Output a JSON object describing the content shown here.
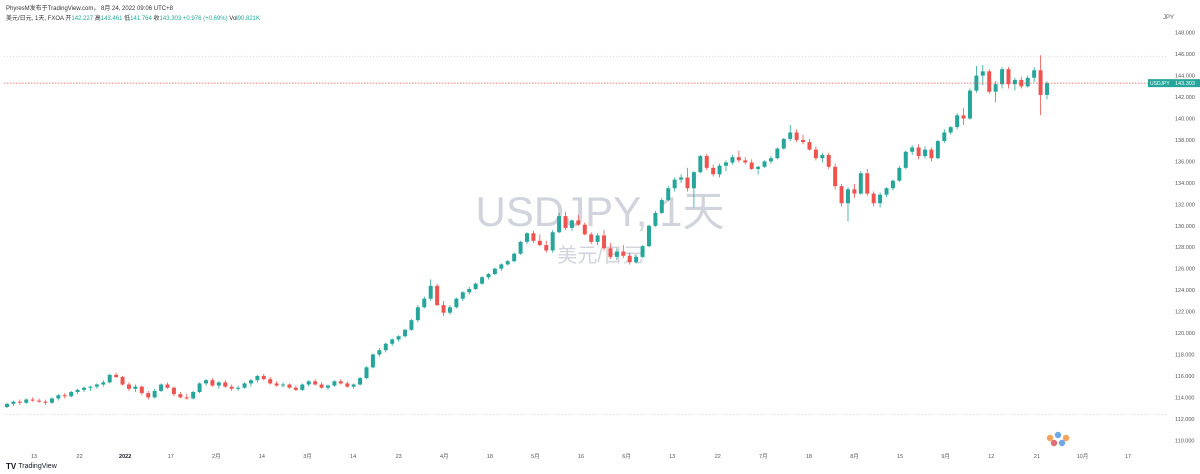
{
  "header": {
    "published": "PhyresM发布于TradingView.com，  8月 24, 2022 09:06 UTC+8",
    "symbol": "美元/日元, 1天, FXOA",
    "open_label": "开",
    "open": "142.227",
    "high_label": "高",
    "high": "143.461",
    "low_label": "低",
    "low": "141.764",
    "close_label": "收",
    "close": "143.303",
    "change": "+0.976 (+0.69%)",
    "vol_label": "Vol",
    "vol": "90.821K"
  },
  "brand": {
    "logo": "TV",
    "name": "TradingView"
  },
  "colors": {
    "up": "#26a69a",
    "down": "#ef5350",
    "price_line": "#ef5350",
    "grid": "#d1d4dc"
  },
  "chart_data": {
    "type": "candlestick",
    "watermark": "USDJPY, 1天",
    "watermark_sub": "美元/日元",
    "y_unit": "JPY",
    "ylim": [
      109,
      149
    ],
    "y_ticks": [
      "110.000",
      "112.000",
      "114.000",
      "116.000",
      "118.000",
      "120.000",
      "122.000",
      "124.000",
      "126.000",
      "128.000",
      "130.000",
      "132.000",
      "134.000",
      "136.000",
      "138.000",
      "140.000",
      "142.000",
      "144.000",
      "146.000",
      "148.000"
    ],
    "x_ticks": [
      "13",
      "22",
      "2022",
      "17",
      "2月",
      "14",
      "3月",
      "14",
      "23",
      "4月",
      "18",
      "5月",
      "16",
      "6月",
      "13",
      "22",
      "7月",
      "18",
      "8月",
      "15",
      "9月",
      "12",
      "21",
      "10月",
      "17"
    ],
    "price_label": {
      "symbol": "USDJPY",
      "value": "143.303"
    },
    "dotted_levels": [
      145.8,
      112.4
    ],
    "candles": [
      [
        113.1,
        113.5,
        113.0,
        113.4
      ],
      [
        113.4,
        113.7,
        113.2,
        113.6
      ],
      [
        113.6,
        113.8,
        113.3,
        113.5
      ],
      [
        113.5,
        113.9,
        113.4,
        113.8
      ],
      [
        113.8,
        114.0,
        113.6,
        113.7
      ],
      [
        113.7,
        113.9,
        113.5,
        113.6
      ],
      [
        113.6,
        113.8,
        113.3,
        113.5
      ],
      [
        113.5,
        114.0,
        113.4,
        113.9
      ],
      [
        113.9,
        114.3,
        113.7,
        114.2
      ],
      [
        114.2,
        114.4,
        113.9,
        114.1
      ],
      [
        114.1,
        114.6,
        114.0,
        114.5
      ],
      [
        114.5,
        114.8,
        114.3,
        114.7
      ],
      [
        114.7,
        115.0,
        114.5,
        114.9
      ],
      [
        114.9,
        115.1,
        114.6,
        115.0
      ],
      [
        115.0,
        115.3,
        114.8,
        115.2
      ],
      [
        115.2,
        115.6,
        115.0,
        115.4
      ],
      [
        115.4,
        116.2,
        115.3,
        116.1
      ],
      [
        116.1,
        116.3,
        115.8,
        115.9
      ],
      [
        115.9,
        116.0,
        115.1,
        115.2
      ],
      [
        115.2,
        115.4,
        114.6,
        114.8
      ],
      [
        114.8,
        115.2,
        114.5,
        115.0
      ],
      [
        115.0,
        115.1,
        114.2,
        114.4
      ],
      [
        114.4,
        114.6,
        113.8,
        114.0
      ],
      [
        114.0,
        114.8,
        113.9,
        114.6
      ],
      [
        114.6,
        115.3,
        114.5,
        115.2
      ],
      [
        115.2,
        115.4,
        114.8,
        114.9
      ],
      [
        114.9,
        115.0,
        114.1,
        114.3
      ],
      [
        114.3,
        114.5,
        113.9,
        114.0
      ],
      [
        114.0,
        114.3,
        113.8,
        113.9
      ],
      [
        113.9,
        114.6,
        113.8,
        114.5
      ],
      [
        114.5,
        115.4,
        114.4,
        115.3
      ],
      [
        115.3,
        115.7,
        115.1,
        115.6
      ],
      [
        115.6,
        115.8,
        115.0,
        115.1
      ],
      [
        115.1,
        115.5,
        114.8,
        115.4
      ],
      [
        115.4,
        115.6,
        114.9,
        115.0
      ],
      [
        115.0,
        115.2,
        114.6,
        114.8
      ],
      [
        114.8,
        115.1,
        114.6,
        114.9
      ],
      [
        114.9,
        115.4,
        114.8,
        115.3
      ],
      [
        115.3,
        115.7,
        115.0,
        115.6
      ],
      [
        115.6,
        116.1,
        115.4,
        116.0
      ],
      [
        116.0,
        116.2,
        115.6,
        115.7
      ],
      [
        115.7,
        115.9,
        115.2,
        115.3
      ],
      [
        115.3,
        115.5,
        115.0,
        115.1
      ],
      [
        115.1,
        115.4,
        114.9,
        115.2
      ],
      [
        115.2,
        115.3,
        114.8,
        114.9
      ],
      [
        114.9,
        115.1,
        114.6,
        114.7
      ],
      [
        114.7,
        115.3,
        114.6,
        115.2
      ],
      [
        115.2,
        115.6,
        115.0,
        115.5
      ],
      [
        115.5,
        115.7,
        115.1,
        115.2
      ],
      [
        115.2,
        115.4,
        114.8,
        114.9
      ],
      [
        114.9,
        115.2,
        114.7,
        115.1
      ],
      [
        115.1,
        115.6,
        115.0,
        115.5
      ],
      [
        115.5,
        115.7,
        115.2,
        115.3
      ],
      [
        115.3,
        115.5,
        114.9,
        115.0
      ],
      [
        115.0,
        115.3,
        114.8,
        115.2
      ],
      [
        115.2,
        115.9,
        115.1,
        115.8
      ],
      [
        115.8,
        116.9,
        115.7,
        116.8
      ],
      [
        116.8,
        118.1,
        116.7,
        118.0
      ],
      [
        118.0,
        118.6,
        117.8,
        118.4
      ],
      [
        118.4,
        119.1,
        118.2,
        119.0
      ],
      [
        119.0,
        119.5,
        118.8,
        119.4
      ],
      [
        119.4,
        119.8,
        119.2,
        119.7
      ],
      [
        119.7,
        120.4,
        119.6,
        120.3
      ],
      [
        120.3,
        121.3,
        120.2,
        121.2
      ],
      [
        121.2,
        122.6,
        121.0,
        122.4
      ],
      [
        122.4,
        123.4,
        122.3,
        123.2
      ],
      [
        123.2,
        125.0,
        123.0,
        124.4
      ],
      [
        124.4,
        124.6,
        122.5,
        122.6
      ],
      [
        122.6,
        123.0,
        121.6,
        121.9
      ],
      [
        121.9,
        122.6,
        121.7,
        122.4
      ],
      [
        122.4,
        123.3,
        122.3,
        123.2
      ],
      [
        123.2,
        123.9,
        123.0,
        123.8
      ],
      [
        123.8,
        124.3,
        123.6,
        124.1
      ],
      [
        124.1,
        124.7,
        124.0,
        124.6
      ],
      [
        124.6,
        125.3,
        124.5,
        125.2
      ],
      [
        125.2,
        125.6,
        125.0,
        125.5
      ],
      [
        125.5,
        126.1,
        125.4,
        126.0
      ],
      [
        126.0,
        126.5,
        125.8,
        126.4
      ],
      [
        126.4,
        126.8,
        126.3,
        126.7
      ],
      [
        126.7,
        127.5,
        126.6,
        127.4
      ],
      [
        127.4,
        128.6,
        127.3,
        128.5
      ],
      [
        128.5,
        129.4,
        128.3,
        129.3
      ],
      [
        129.3,
        129.5,
        128.4,
        128.6
      ],
      [
        128.6,
        129.2,
        128.1,
        128.2
      ],
      [
        128.2,
        128.6,
        127.5,
        127.7
      ],
      [
        127.7,
        129.6,
        127.5,
        129.4
      ],
      [
        129.4,
        131.2,
        129.3,
        130.9
      ],
      [
        130.9,
        131.3,
        129.6,
        129.8
      ],
      [
        129.8,
        130.6,
        129.5,
        130.5
      ],
      [
        130.5,
        131.0,
        130.0,
        130.1
      ],
      [
        130.1,
        130.3,
        129.1,
        129.2
      ],
      [
        129.2,
        129.4,
        128.3,
        128.5
      ],
      [
        128.5,
        129.3,
        128.2,
        129.1
      ],
      [
        129.1,
        129.6,
        127.7,
        127.9
      ],
      [
        127.9,
        128.4,
        126.9,
        127.1
      ],
      [
        127.1,
        127.9,
        126.8,
        127.6
      ],
      [
        127.6,
        128.2,
        127.0,
        127.2
      ],
      [
        127.2,
        127.5,
        126.4,
        126.6
      ],
      [
        126.6,
        127.3,
        126.5,
        127.1
      ],
      [
        127.1,
        128.2,
        127.0,
        128.1
      ],
      [
        128.1,
        130.1,
        128.0,
        130.0
      ],
      [
        130.0,
        131.4,
        129.9,
        131.2
      ],
      [
        131.2,
        132.6,
        131.1,
        132.4
      ],
      [
        132.4,
        133.7,
        132.3,
        133.5
      ],
      [
        133.5,
        134.5,
        133.2,
        134.3
      ],
      [
        134.3,
        134.8,
        134.0,
        134.5
      ],
      [
        134.5,
        135.4,
        133.2,
        133.5
      ],
      [
        133.5,
        135.1,
        131.7,
        135.0
      ],
      [
        135.0,
        136.6,
        134.9,
        136.5
      ],
      [
        136.5,
        136.7,
        135.2,
        135.4
      ],
      [
        135.4,
        135.7,
        134.6,
        134.8
      ],
      [
        134.8,
        135.8,
        134.5,
        135.6
      ],
      [
        135.6,
        136.1,
        135.1,
        135.9
      ],
      [
        135.9,
        136.6,
        135.7,
        136.4
      ],
      [
        136.4,
        137.0,
        135.9,
        136.1
      ],
      [
        136.1,
        136.4,
        135.7,
        135.9
      ],
      [
        135.9,
        136.2,
        135.2,
        135.3
      ],
      [
        135.3,
        135.6,
        134.8,
        135.5
      ],
      [
        135.5,
        136.1,
        135.4,
        136.0
      ],
      [
        136.0,
        136.5,
        135.8,
        136.3
      ],
      [
        136.3,
        137.3,
        136.2,
        137.2
      ],
      [
        137.2,
        138.2,
        137.1,
        138.1
      ],
      [
        138.1,
        139.4,
        137.9,
        138.7
      ],
      [
        138.7,
        139.0,
        137.8,
        138.0
      ],
      [
        138.0,
        138.5,
        137.6,
        137.8
      ],
      [
        137.8,
        138.1,
        137.0,
        137.1
      ],
      [
        137.1,
        137.4,
        136.1,
        136.3
      ],
      [
        136.3,
        136.8,
        135.9,
        136.6
      ],
      [
        136.6,
        136.8,
        135.3,
        135.5
      ],
      [
        135.5,
        135.8,
        133.4,
        133.7
      ],
      [
        133.7,
        133.9,
        131.8,
        132.1
      ],
      [
        132.1,
        133.6,
        130.4,
        133.4
      ],
      [
        133.4,
        133.9,
        132.6,
        133.0
      ],
      [
        133.0,
        135.1,
        132.9,
        134.9
      ],
      [
        134.9,
        135.3,
        132.8,
        133.0
      ],
      [
        133.0,
        133.2,
        131.8,
        132.1
      ],
      [
        132.1,
        133.1,
        131.7,
        132.9
      ],
      [
        132.9,
        133.6,
        132.7,
        133.5
      ],
      [
        133.5,
        134.3,
        133.3,
        134.2
      ],
      [
        134.2,
        135.6,
        134.1,
        135.4
      ],
      [
        135.4,
        137.0,
        135.3,
        136.9
      ],
      [
        136.9,
        137.5,
        136.6,
        137.3
      ],
      [
        137.3,
        137.6,
        136.2,
        136.5
      ],
      [
        136.5,
        137.4,
        136.3,
        137.1
      ],
      [
        137.1,
        137.3,
        136.0,
        136.3
      ],
      [
        136.3,
        138.0,
        136.2,
        137.9
      ],
      [
        137.9,
        139.0,
        137.7,
        138.7
      ],
      [
        138.7,
        139.3,
        138.5,
        139.2
      ],
      [
        139.2,
        140.5,
        139.0,
        140.3
      ],
      [
        140.3,
        141.0,
        139.4,
        140.0
      ],
      [
        140.0,
        142.8,
        139.9,
        142.6
      ],
      [
        142.6,
        144.9,
        142.4,
        144.0
      ],
      [
        144.0,
        145.0,
        143.1,
        144.4
      ],
      [
        144.4,
        144.6,
        142.3,
        142.5
      ],
      [
        142.5,
        143.5,
        141.5,
        143.2
      ],
      [
        143.2,
        144.8,
        142.8,
        144.6
      ],
      [
        144.6,
        144.8,
        142.8,
        143.2
      ],
      [
        143.2,
        143.8,
        142.6,
        143.6
      ],
      [
        143.6,
        143.9,
        142.8,
        143.0
      ],
      [
        143.0,
        144.0,
        142.9,
        143.8
      ],
      [
        143.8,
        144.8,
        143.4,
        144.5
      ],
      [
        144.5,
        145.9,
        140.3,
        142.2
      ],
      [
        142.2,
        143.5,
        141.8,
        143.3
      ]
    ]
  }
}
